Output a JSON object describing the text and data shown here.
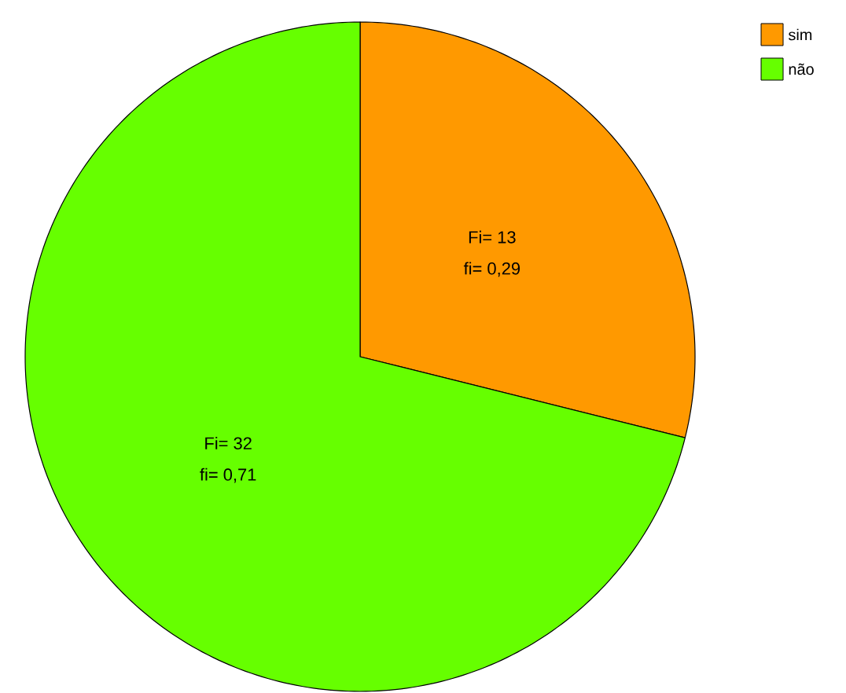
{
  "chart_data": {
    "type": "pie",
    "categories": [
      "sim",
      "não"
    ],
    "values": [
      13,
      32
    ],
    "colors": [
      "#ff9900",
      "#66ff00"
    ],
    "value_labels": [
      "Fi= 13",
      "Fi= 32"
    ],
    "annotations": [
      "fi= 0,29",
      "fi= 0,71"
    ],
    "legend": "top right"
  }
}
